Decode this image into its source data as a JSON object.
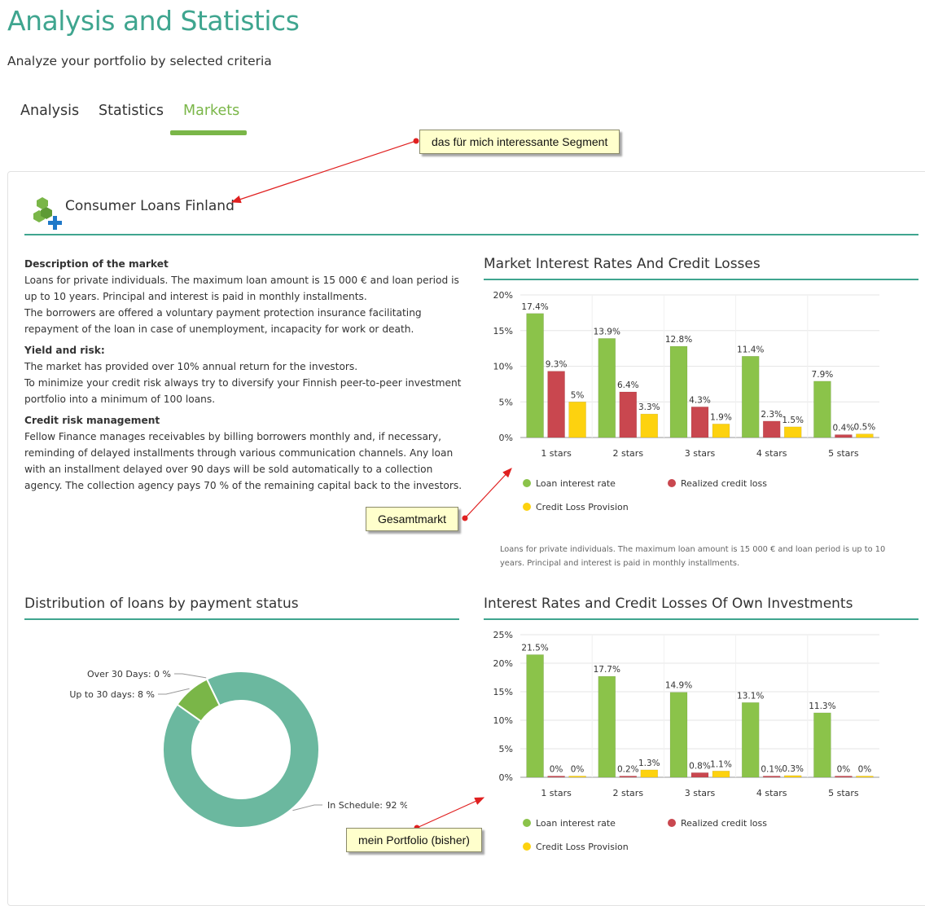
{
  "page": {
    "title": "Analysis and Statistics",
    "subtitle": "Analyze your portfolio by selected criteria"
  },
  "tabs": [
    {
      "label": "Analysis",
      "active": false
    },
    {
      "label": "Statistics",
      "active": false
    },
    {
      "label": "Markets",
      "active": true
    }
  ],
  "market": {
    "name": "Consumer Loans Finland",
    "icon": "cubes-plus-icon"
  },
  "description": {
    "market_heading": "Description of the market",
    "market_text_1": "Loans for private individuals. The maximum loan amount is 15 000 € and loan period is up to 10 years. Principal and interest is paid in monthly installments.",
    "market_text_2": "The borrowers are offered a voluntary payment protection insurance facilitating repayment of the loan in case of unemployment, incapacity for work or death.",
    "yield_heading": "Yield and risk:",
    "yield_text_1": "The market has provided over 10% annual return for the investors.",
    "yield_text_2": "To minimize your credit risk always try to diversify your Finnish peer-to-peer investment portfolio into a minimum of 100 loans.",
    "credit_heading": "Credit risk management",
    "credit_text": "Fellow Finance manages receivables by billing borrowers monthly and, if necessary, reminding of delayed installments through various communication channels. Any loan with an installment delayed over 90 days will be sold automatically to a collection agency. The collection agency pays 70 % of the remaining capital back to the investors."
  },
  "colors": {
    "accent_teal": "#3fa58f",
    "tab_active": "#7ab648",
    "series_green": "#8bc34a",
    "series_red": "#c9474f",
    "series_yellow": "#fdd20f",
    "donut_main": "#6bb89f",
    "donut_late": "#7ab648"
  },
  "chart_note": "Loans for private individuals. The maximum loan amount is 15 000 € and loan period is up to 10 years. Principal and interest is paid in monthly installments.",
  "chart_data": [
    {
      "id": "market",
      "type": "bar",
      "title": "Market Interest Rates And Credit Losses",
      "categories": [
        "1 stars",
        "2 stars",
        "3 stars",
        "4 stars",
        "5 stars"
      ],
      "series": [
        {
          "name": "Loan interest rate",
          "values": [
            17.4,
            13.9,
            12.8,
            11.4,
            7.9
          ]
        },
        {
          "name": "Realized credit loss",
          "values": [
            9.3,
            6.4,
            4.3,
            2.3,
            0.4
          ]
        },
        {
          "name": "Credit Loss Provision",
          "values": [
            5,
            3.3,
            1.9,
            1.5,
            0.5
          ]
        }
      ],
      "yticks": [
        "0%",
        "5%",
        "10%",
        "15%",
        "20%"
      ],
      "ylim": [
        0,
        20
      ],
      "grid": true,
      "legend": "bottom"
    },
    {
      "id": "own",
      "type": "bar",
      "title": "Interest Rates and Credit Losses Of Own Investments",
      "categories": [
        "1 stars",
        "2 stars",
        "3 stars",
        "4 stars",
        "5 stars"
      ],
      "series": [
        {
          "name": "Loan interest rate",
          "values": [
            21.5,
            17.7,
            14.9,
            13.1,
            11.3
          ]
        },
        {
          "name": "Realized credit loss",
          "values": [
            0,
            0.2,
            0.8,
            0.1,
            0
          ]
        },
        {
          "name": "Credit Loss Provision",
          "values": [
            0,
            1.3,
            1.1,
            0.3,
            0
          ]
        }
      ],
      "yticks": [
        "0%",
        "5%",
        "10%",
        "15%",
        "20%",
        "25%"
      ],
      "ylim": [
        0,
        25
      ],
      "grid": true,
      "legend": "bottom"
    },
    {
      "id": "status",
      "type": "pie",
      "title": "Distribution of loans by payment status",
      "slices": [
        {
          "label": "In Schedule: 92 %",
          "value": 92
        },
        {
          "label": "Up to 30 days: 8 %",
          "value": 8
        },
        {
          "label": "Over 30 Days: 0 %",
          "value": 0
        }
      ],
      "donut": true
    }
  ],
  "annotations": [
    {
      "text": "das für mich interessante Segment"
    },
    {
      "text": "Gesamtmarkt"
    },
    {
      "text": "mein Portfolio (bisher)"
    }
  ]
}
